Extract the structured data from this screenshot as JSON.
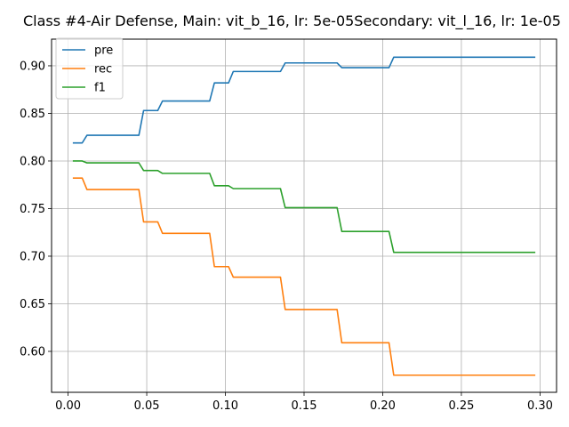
{
  "chart_data": {
    "type": "line",
    "title": "Class #4-Air Defense, Main: vit_b_16, lr: 5e-05Secondary: vit_l_16, lr: 1e-05",
    "xlabel": "",
    "ylabel": "",
    "xlim": [
      -0.0105,
      0.3105
    ],
    "ylim": [
      0.557,
      0.928
    ],
    "xticks": [
      0.0,
      0.05,
      0.1,
      0.15,
      0.2,
      0.25,
      0.3
    ],
    "xtick_labels": [
      "0.00",
      "0.05",
      "0.10",
      "0.15",
      "0.20",
      "0.25",
      "0.30"
    ],
    "yticks": [
      0.6,
      0.65,
      0.7,
      0.75,
      0.8,
      0.85,
      0.9
    ],
    "ytick_labels": [
      "0.60",
      "0.65",
      "0.70",
      "0.75",
      "0.80",
      "0.85",
      "0.90"
    ],
    "grid": true,
    "legend_position": "top-left",
    "series": [
      {
        "name": "pre",
        "color": "#1f77b4",
        "points": [
          [
            0.003,
            0.819
          ],
          [
            0.009,
            0.819
          ],
          [
            0.012,
            0.827
          ],
          [
            0.045,
            0.827
          ],
          [
            0.048,
            0.853
          ],
          [
            0.057,
            0.853
          ],
          [
            0.06,
            0.863
          ],
          [
            0.09,
            0.863
          ],
          [
            0.093,
            0.882
          ],
          [
            0.102,
            0.882
          ],
          [
            0.105,
            0.894
          ],
          [
            0.135,
            0.894
          ],
          [
            0.138,
            0.903
          ],
          [
            0.171,
            0.903
          ],
          [
            0.174,
            0.898
          ],
          [
            0.204,
            0.898
          ],
          [
            0.207,
            0.909
          ],
          [
            0.297,
            0.909
          ]
        ]
      },
      {
        "name": "rec",
        "color": "#ff7f0e",
        "points": [
          [
            0.003,
            0.782
          ],
          [
            0.009,
            0.782
          ],
          [
            0.012,
            0.77
          ],
          [
            0.045,
            0.77
          ],
          [
            0.048,
            0.736
          ],
          [
            0.057,
            0.736
          ],
          [
            0.06,
            0.724
          ],
          [
            0.09,
            0.724
          ],
          [
            0.093,
            0.689
          ],
          [
            0.102,
            0.689
          ],
          [
            0.105,
            0.678
          ],
          [
            0.135,
            0.678
          ],
          [
            0.138,
            0.644
          ],
          [
            0.171,
            0.644
          ],
          [
            0.174,
            0.609
          ],
          [
            0.204,
            0.609
          ],
          [
            0.207,
            0.575
          ],
          [
            0.297,
            0.575
          ]
        ]
      },
      {
        "name": "f1",
        "color": "#2ca02c",
        "points": [
          [
            0.003,
            0.8
          ],
          [
            0.009,
            0.8
          ],
          [
            0.012,
            0.798
          ],
          [
            0.045,
            0.798
          ],
          [
            0.048,
            0.79
          ],
          [
            0.057,
            0.79
          ],
          [
            0.06,
            0.787
          ],
          [
            0.09,
            0.787
          ],
          [
            0.093,
            0.774
          ],
          [
            0.102,
            0.774
          ],
          [
            0.105,
            0.771
          ],
          [
            0.135,
            0.771
          ],
          [
            0.138,
            0.751
          ],
          [
            0.171,
            0.751
          ],
          [
            0.174,
            0.726
          ],
          [
            0.204,
            0.726
          ],
          [
            0.207,
            0.704
          ],
          [
            0.297,
            0.704
          ]
        ]
      }
    ]
  }
}
